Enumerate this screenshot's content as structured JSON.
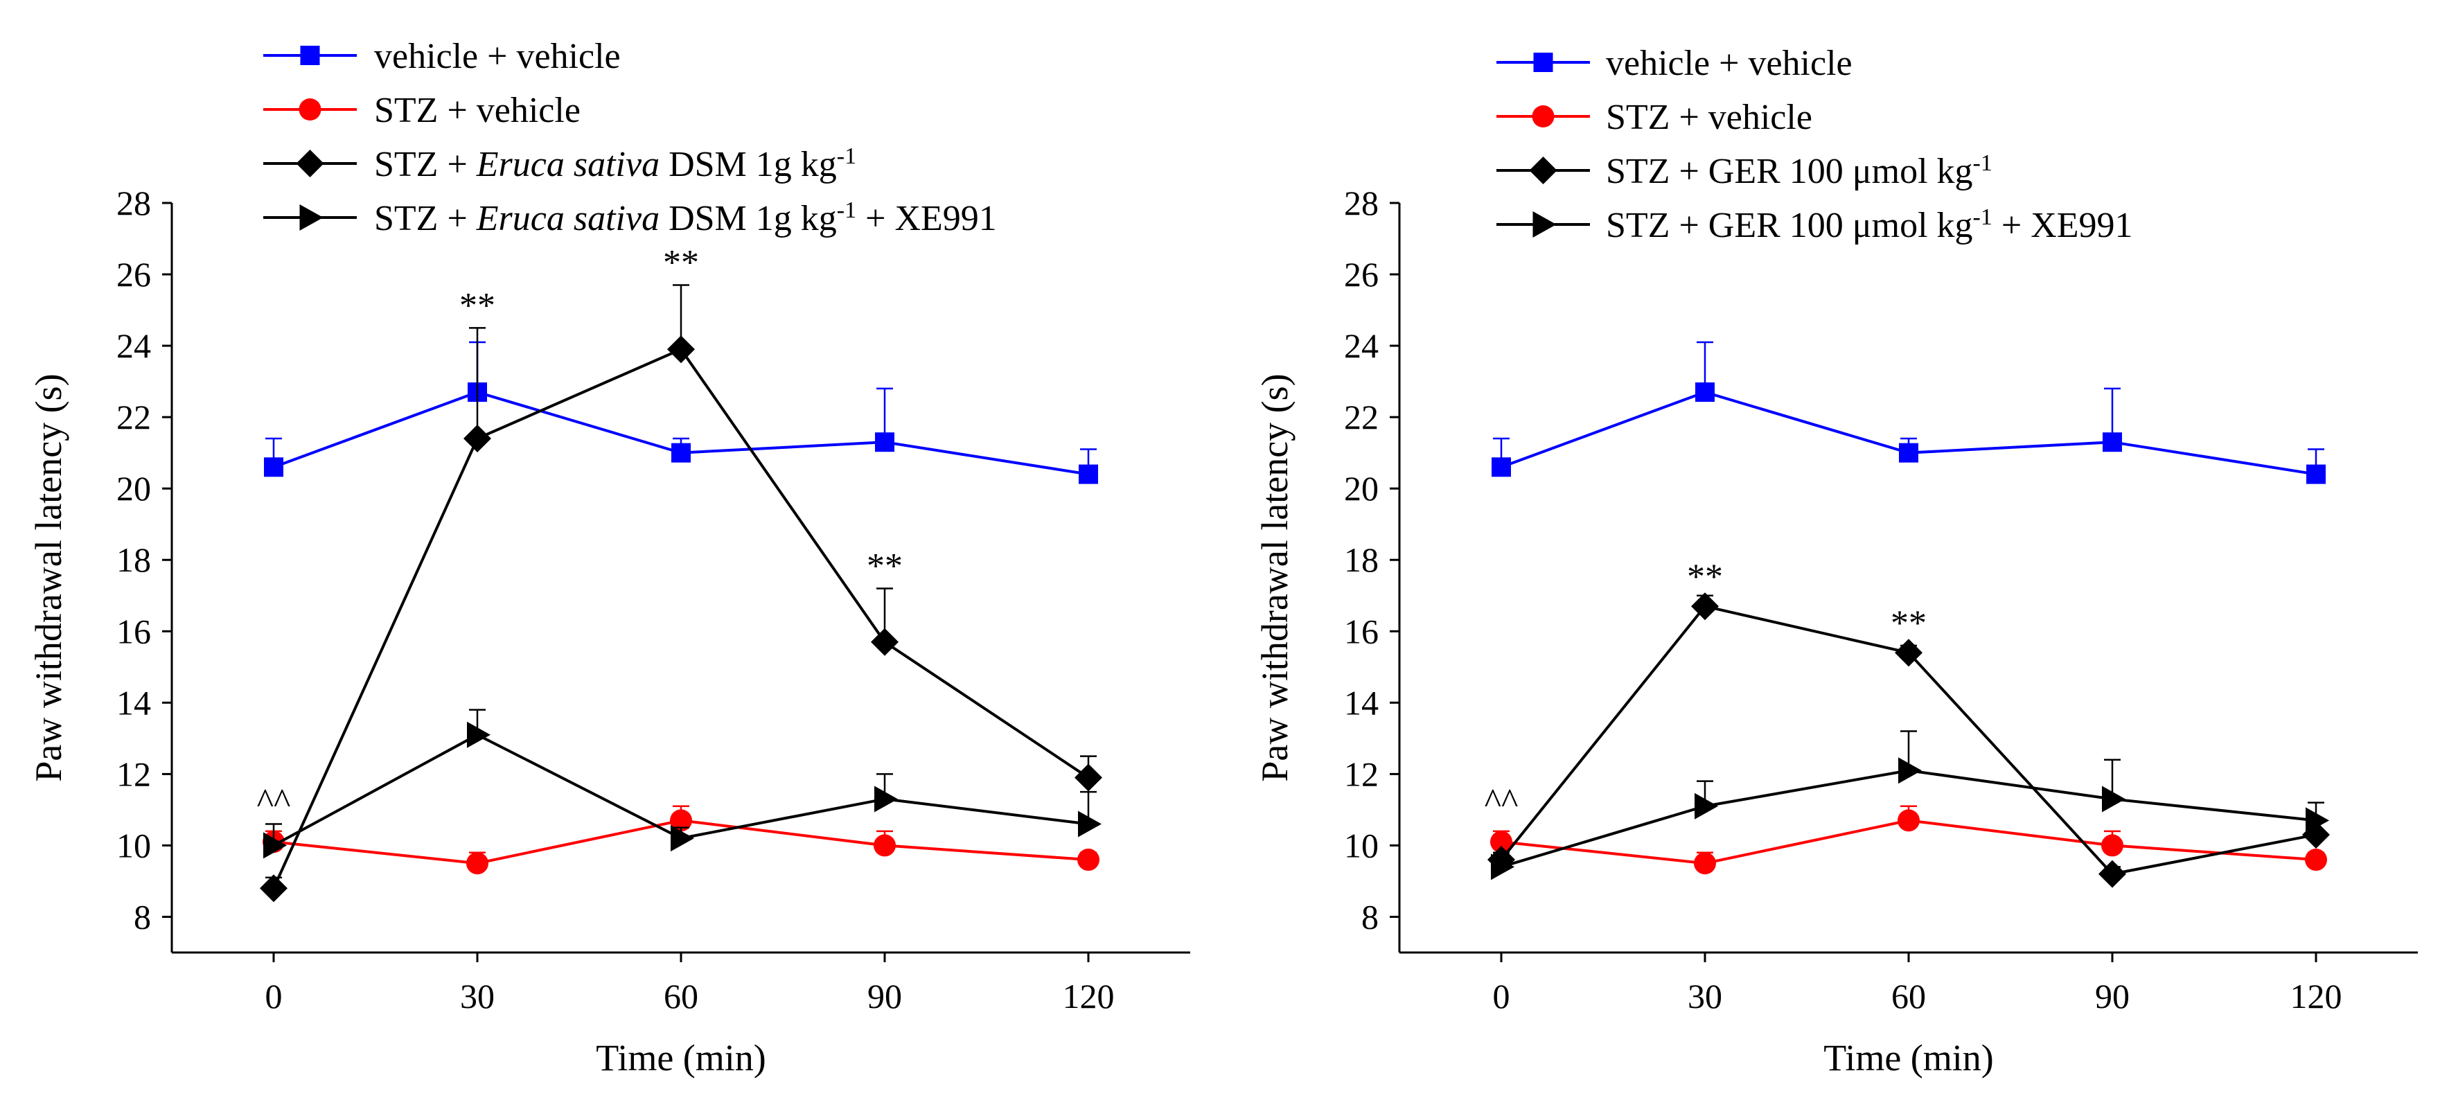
{
  "figure": {
    "panels": [
      {
        "legend": [
          {
            "name": "vehicle + vehicle",
            "parts": [
              {
                "t": "vehicle + vehicle"
              }
            ]
          },
          {
            "name": "STZ + vehicle",
            "parts": [
              {
                "t": "STZ + vehicle"
              }
            ]
          },
          {
            "name": "STZ + Eruca sativa DSM 1g kg-1",
            "parts": [
              {
                "t": "STZ + "
              },
              {
                "t": "Eruca sativa",
                "i": true
              },
              {
                "t": " DSM 1g kg"
              },
              {
                "t": "-1",
                "sup": true
              }
            ]
          },
          {
            "name": "STZ + Eruca sativa DSM 1g kg-1 + XE991",
            "parts": [
              {
                "t": "STZ + "
              },
              {
                "t": "Eruca sativa",
                "i": true
              },
              {
                "t": " DSM 1g kg"
              },
              {
                "t": "-1",
                "sup": true
              },
              {
                "t": " + XE991"
              }
            ]
          }
        ],
        "baseline_marker": "^^",
        "sig_marker": "**"
      },
      {
        "legend": [
          {
            "name": "vehicle + vehicle",
            "parts": [
              {
                "t": "vehicle + vehicle"
              }
            ]
          },
          {
            "name": "STZ + vehicle",
            "parts": [
              {
                "t": "STZ + vehicle"
              }
            ]
          },
          {
            "name": "STZ + GER 100 μmol kg-1",
            "parts": [
              {
                "t": "STZ + GER 100 μmol kg"
              },
              {
                "t": "-1",
                "sup": true
              }
            ]
          },
          {
            "name": "STZ + GER 100 μmol kg-1 + XE991",
            "parts": [
              {
                "t": "STZ + GER 100 μmol kg"
              },
              {
                "t": "-1",
                "sup": true
              },
              {
                "t": " + XE991"
              }
            ]
          }
        ],
        "baseline_marker": "^^",
        "sig_marker": "**"
      }
    ]
  },
  "chart_data": [
    {
      "type": "line",
      "title": "",
      "xlabel": "Time (min)",
      "ylabel": "Paw withdrawal latency (s)",
      "xlim": [
        -15,
        135
      ],
      "ylim": [
        7,
        28
      ],
      "xticks": [
        0,
        30,
        60,
        90,
        120
      ],
      "yticks": [
        8,
        10,
        12,
        14,
        16,
        18,
        20,
        22,
        24,
        26,
        28
      ],
      "x": [
        0,
        30,
        60,
        90,
        120
      ],
      "series": [
        {
          "name": "vehicle + vehicle",
          "color": "#0000ff",
          "marker": "square",
          "values": [
            20.6,
            22.7,
            21.0,
            21.3,
            20.4
          ],
          "err": [
            0.8,
            1.4,
            0.4,
            1.5,
            0.7
          ]
        },
        {
          "name": "STZ + vehicle",
          "color": "#ff0000",
          "marker": "circle",
          "values": [
            10.1,
            9.5,
            10.7,
            10.0,
            9.6
          ],
          "err": [
            0.3,
            0.3,
            0.4,
            0.4,
            0.2
          ]
        },
        {
          "name": "STZ + Eruca sativa DSM 1g kg-1",
          "color": "#000000",
          "marker": "diamond",
          "values": [
            8.8,
            21.4,
            23.9,
            15.7,
            11.9
          ],
          "err": [
            0.3,
            3.1,
            1.8,
            1.5,
            0.6
          ]
        },
        {
          "name": "STZ + Eruca sativa DSM 1g kg-1 + XE991",
          "color": "#000000",
          "marker": "triangle-right",
          "values": [
            10.0,
            13.1,
            10.2,
            11.3,
            10.6
          ],
          "err": [
            0.6,
            0.7,
            0.3,
            0.7,
            0.9
          ]
        }
      ],
      "annotations": [
        {
          "text": "^^",
          "x": 0,
          "y": 10.9
        },
        {
          "text": "**",
          "x": 30,
          "y": 24.8
        },
        {
          "text": "**",
          "x": 60,
          "y": 26.0
        },
        {
          "text": "**",
          "x": 90,
          "y": 17.5
        }
      ]
    },
    {
      "type": "line",
      "title": "",
      "xlabel": "Time (min)",
      "ylabel": "Paw withdrawal latency (s)",
      "xlim": [
        -15,
        135
      ],
      "ylim": [
        7,
        28
      ],
      "xticks": [
        0,
        30,
        60,
        90,
        120
      ],
      "yticks": [
        8,
        10,
        12,
        14,
        16,
        18,
        20,
        22,
        24,
        26,
        28
      ],
      "x": [
        0,
        30,
        60,
        90,
        120
      ],
      "series": [
        {
          "name": "vehicle + vehicle",
          "color": "#0000ff",
          "marker": "square",
          "values": [
            20.6,
            22.7,
            21.0,
            21.3,
            20.4
          ],
          "err": [
            0.8,
            1.4,
            0.4,
            1.5,
            0.7
          ]
        },
        {
          "name": "STZ + vehicle",
          "color": "#ff0000",
          "marker": "circle",
          "values": [
            10.1,
            9.5,
            10.7,
            10.0,
            9.6
          ],
          "err": [
            0.3,
            0.3,
            0.4,
            0.4,
            0.2
          ]
        },
        {
          "name": "STZ + GER 100 μmol kg-1",
          "color": "#000000",
          "marker": "diamond",
          "values": [
            9.6,
            16.7,
            15.4,
            9.2,
            10.3
          ],
          "err": [
            0.2,
            0.3,
            0.2,
            0.2,
            0.4
          ]
        },
        {
          "name": "STZ + GER 100 μmol kg-1 + XE991",
          "color": "#000000",
          "marker": "triangle-right",
          "values": [
            9.4,
            11.1,
            12.1,
            11.3,
            10.7
          ],
          "err": [
            0.3,
            0.7,
            1.1,
            1.1,
            0.5
          ]
        }
      ],
      "annotations": [
        {
          "text": "^^",
          "x": 0,
          "y": 10.9
        },
        {
          "text": "**",
          "x": 30,
          "y": 17.2
        },
        {
          "text": "**",
          "x": 60,
          "y": 15.9
        }
      ]
    }
  ]
}
